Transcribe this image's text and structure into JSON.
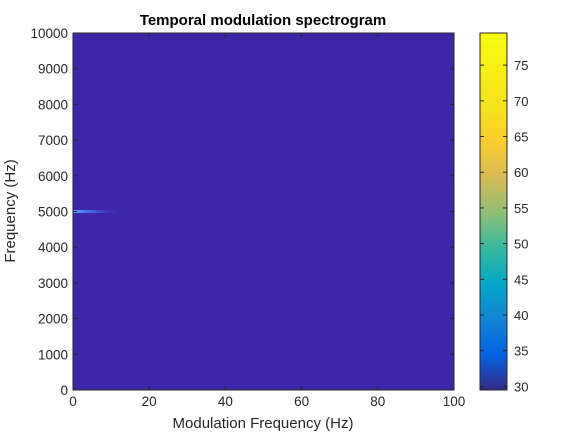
{
  "chart_data": {
    "type": "heatmap",
    "title": "Temporal modulation spectrogram",
    "xlabel": "Modulation Frequency (Hz)",
    "ylabel": "Frequency (Hz)",
    "xlim": [
      0,
      100
    ],
    "ylim": [
      0,
      10000
    ],
    "x_ticks": [
      "0",
      "20",
      "40",
      "60",
      "80",
      "100"
    ],
    "y_ticks": [
      "0",
      "1000",
      "2000",
      "3000",
      "4000",
      "5000",
      "6000",
      "7000",
      "8000",
      "9000",
      "10000"
    ],
    "colorbar": {
      "colormap": "parula",
      "range": [
        29.5,
        79.5
      ],
      "ticks": [
        "30",
        "35",
        "40",
        "45",
        "50",
        "55",
        "60",
        "65",
        "70",
        "75"
      ]
    },
    "background_level": 31,
    "features": [
      {
        "x_range": [
          0,
          14
        ],
        "y": 5000,
        "peak_level": 45
      }
    ],
    "grid": false,
    "colors": {
      "background_cell": "#3e26a8",
      "feature": "#3d6df0",
      "axis": "#262626"
    }
  }
}
